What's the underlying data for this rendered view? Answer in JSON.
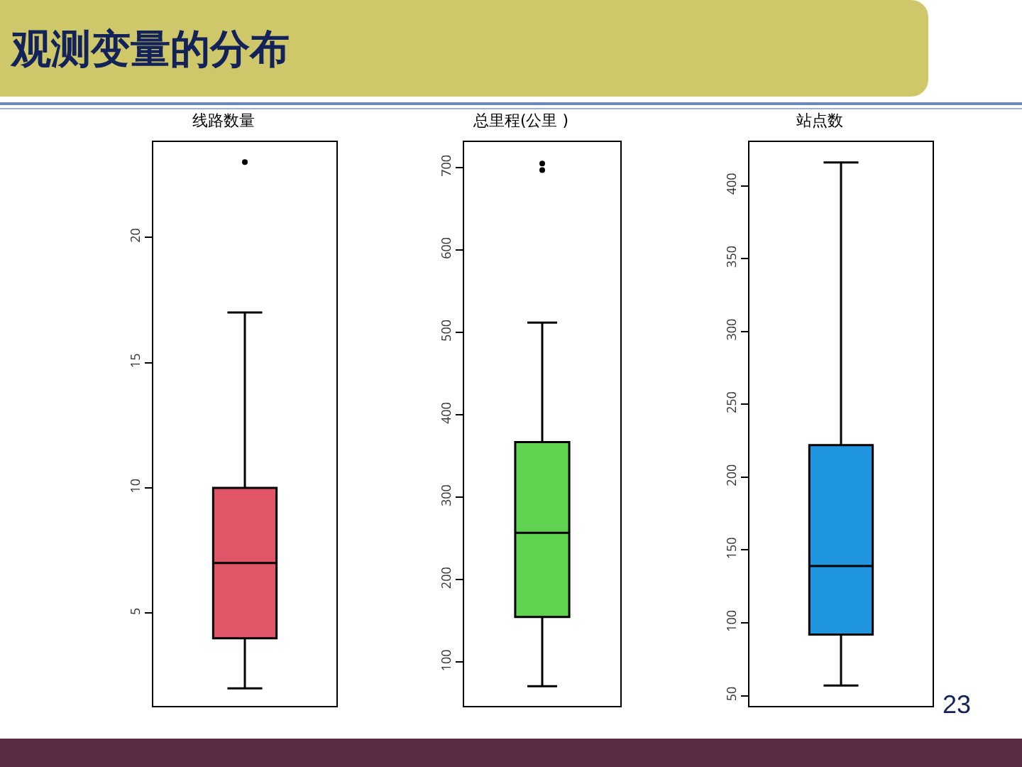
{
  "chart_data": [
    {
      "type": "box",
      "title": "线路数量",
      "categories": [
        null
      ],
      "color": "#e05568",
      "boxes": [
        {
          "low": 2,
          "q1": 4,
          "median": 7,
          "q3": 10,
          "high": 17,
          "outliers": [
            23
          ]
        }
      ],
      "ylim": [
        1.3,
        23.8
      ],
      "yticks": [
        5,
        10,
        15,
        20
      ],
      "tick_labels": "y",
      "grid": false
    },
    {
      "type": "box",
      "title": "总里程(公里 )",
      "categories": [
        null
      ],
      "color": "#5fd24f",
      "boxes": [
        {
          "low": 71,
          "q1": 155,
          "median": 257,
          "q3": 367,
          "high": 512,
          "outliers": [
            697,
            705
          ]
        }
      ],
      "ylim": [
        47,
        731
      ],
      "yticks": [
        100,
        200,
        300,
        400,
        500,
        600,
        700
      ],
      "tick_labels": "y",
      "grid": false
    },
    {
      "type": "box",
      "title": "站点数",
      "categories": [
        null
      ],
      "color": "#2196e0",
      "boxes": [
        {
          "low": 57,
          "q1": 92,
          "median": 139,
          "q3": 222,
          "high": 416
        }
      ],
      "ylim": [
        43,
        430
      ],
      "yticks": [
        50,
        100,
        150,
        200,
        250,
        300,
        350,
        400
      ],
      "tick_labels": "y",
      "grid": false
    },
    {
      "type": "other",
      "title": "观测变量的分布",
      "annotations": [
        "23"
      ]
    }
  ]
}
